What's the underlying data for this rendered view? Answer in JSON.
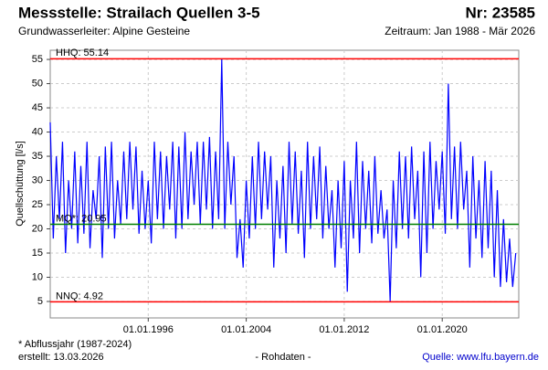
{
  "chart_data": {
    "type": "line",
    "title": "Messstelle: Strailach Quellen 3-5",
    "number": "Nr: 23585",
    "subtitle": "Grundwasserleiter: Alpine Gesteine",
    "period": "Zeitraum: Jan 1988 - Mär 2026",
    "ylabel": "Quellschüttung [l/s]",
    "footnote": "* Abflussjahr (1987-2024)",
    "created": "erstellt:  13.03.2026",
    "rawdata": "- Rohdaten -",
    "source": "Quelle: www.lfu.bayern.de",
    "xlim": [
      "01.01.1988",
      "01.04.2026"
    ],
    "xticks": [
      "01.01.1996",
      "01.01.2004",
      "01.01.2012",
      "01.01.2020"
    ],
    "ylim": [
      1.6,
      56.9
    ],
    "yticks": [
      5,
      10,
      15,
      20,
      25,
      30,
      35,
      40,
      45,
      50,
      55
    ],
    "grid": true,
    "reference_lines": [
      {
        "label": "HHQ: 55.14",
        "value": 55.14,
        "color": "#ff0000"
      },
      {
        "label": "MQ*: 20.95",
        "value": 20.95,
        "color": "#008000"
      },
      {
        "label": "NNQ: 4.92",
        "value": 4.92,
        "color": "#ff0000"
      }
    ],
    "series": [
      {
        "color": "#0000ff",
        "x": [
          "01.01.1988",
          "01.04.1988",
          "01.07.1988",
          "01.10.1988",
          "01.01.1989",
          "01.04.1989",
          "01.07.1989",
          "01.10.1989",
          "01.01.1990",
          "01.04.1990",
          "01.07.1990",
          "01.10.1990",
          "01.01.1991",
          "01.04.1991",
          "01.07.1991",
          "01.10.1991",
          "01.01.1992",
          "01.04.1992",
          "01.07.1992",
          "01.10.1992",
          "01.01.1993",
          "01.04.1993",
          "01.07.1993",
          "01.10.1993",
          "01.01.1994",
          "01.04.1994",
          "01.07.1994",
          "01.10.1994",
          "01.01.1995",
          "01.04.1995",
          "01.07.1995",
          "01.10.1995",
          "01.01.1996",
          "01.04.1996",
          "01.07.1996",
          "01.10.1996",
          "01.01.1997",
          "01.04.1997",
          "01.07.1997",
          "01.10.1997",
          "01.01.1998",
          "01.04.1998",
          "01.07.1998",
          "01.10.1998",
          "01.01.1999",
          "01.04.1999",
          "01.07.1999",
          "01.10.1999",
          "01.01.2000",
          "01.04.2000",
          "01.07.2000",
          "01.10.2000",
          "01.01.2001",
          "01.04.2001",
          "01.07.2001",
          "01.10.2001",
          "01.01.2002",
          "01.04.2002",
          "01.07.2002",
          "01.10.2002",
          "01.01.2003",
          "01.04.2003",
          "01.07.2003",
          "01.10.2003",
          "01.01.2004",
          "01.04.2004",
          "01.07.2004",
          "01.10.2004",
          "01.01.2005",
          "01.04.2005",
          "01.07.2005",
          "01.10.2005",
          "01.01.2006",
          "01.04.2006",
          "01.07.2006",
          "01.10.2006",
          "01.01.2007",
          "01.04.2007",
          "01.07.2007",
          "01.10.2007",
          "01.01.2008",
          "01.04.2008",
          "01.07.2008",
          "01.10.2008",
          "01.01.2009",
          "01.04.2009",
          "01.07.2009",
          "01.10.2009",
          "01.01.2010",
          "01.04.2010",
          "01.07.2010",
          "01.10.2010",
          "01.01.2011",
          "01.04.2011",
          "01.07.2011",
          "01.10.2011",
          "01.01.2012",
          "01.04.2012",
          "01.07.2012",
          "01.10.2012",
          "01.01.2013",
          "01.04.2013",
          "01.07.2013",
          "01.10.2013",
          "01.01.2014",
          "01.04.2014",
          "01.07.2014",
          "01.10.2014",
          "01.01.2015",
          "01.04.2015",
          "01.07.2015",
          "01.10.2015",
          "01.01.2016",
          "01.04.2016",
          "01.07.2016",
          "01.10.2016",
          "01.01.2017",
          "01.04.2017",
          "01.07.2017",
          "01.10.2017",
          "01.01.2018",
          "01.04.2018",
          "01.07.2018",
          "01.10.2018",
          "01.01.2019",
          "01.04.2019",
          "01.07.2019",
          "01.10.2019",
          "01.01.2020",
          "01.04.2020",
          "01.07.2020",
          "01.10.2020",
          "01.01.2021",
          "01.04.2021",
          "01.07.2021",
          "01.10.2021",
          "01.01.2022",
          "01.04.2022",
          "01.07.2022",
          "01.10.2022",
          "01.01.2023",
          "01.04.2023",
          "01.07.2023",
          "01.10.2023",
          "01.01.2024",
          "01.04.2024",
          "01.07.2024",
          "01.10.2024",
          "01.01.2025",
          "01.04.2025",
          "01.07.2025",
          "01.10.2025",
          "01.01.2026"
        ],
        "values": [
          42,
          18,
          35,
          22,
          38,
          15,
          30,
          20,
          36,
          17,
          33,
          19,
          38,
          16,
          28,
          22,
          35,
          14,
          37,
          20,
          38,
          18,
          30,
          21,
          36,
          22,
          38,
          24,
          37,
          19,
          32,
          20,
          30,
          17,
          38,
          22,
          36,
          20,
          35,
          24,
          38,
          18,
          37,
          20,
          40,
          22,
          36,
          25,
          38,
          21,
          38,
          24,
          39,
          20,
          36,
          22,
          55,
          20,
          38,
          25,
          35,
          14,
          22,
          12,
          30,
          18,
          35,
          20,
          38,
          22,
          36,
          24,
          35,
          12,
          30,
          18,
          33,
          15,
          38,
          21,
          36,
          19,
          32,
          14,
          38,
          20,
          35,
          22,
          37,
          18,
          33,
          20,
          28,
          12,
          30,
          16,
          34,
          7,
          30,
          18,
          38,
          15,
          34,
          20,
          32,
          17,
          35,
          19,
          28,
          18,
          24,
          5,
          30,
          16,
          36,
          20,
          35,
          18,
          37,
          22,
          32,
          10,
          36,
          15,
          38,
          20,
          34,
          24,
          36,
          19,
          50,
          22,
          37,
          20,
          38,
          24,
          32,
          12,
          35,
          18,
          30,
          14,
          34,
          16,
          32,
          10,
          28,
          8,
          22,
          9,
          18,
          8,
          15
        ]
      }
    ]
  }
}
